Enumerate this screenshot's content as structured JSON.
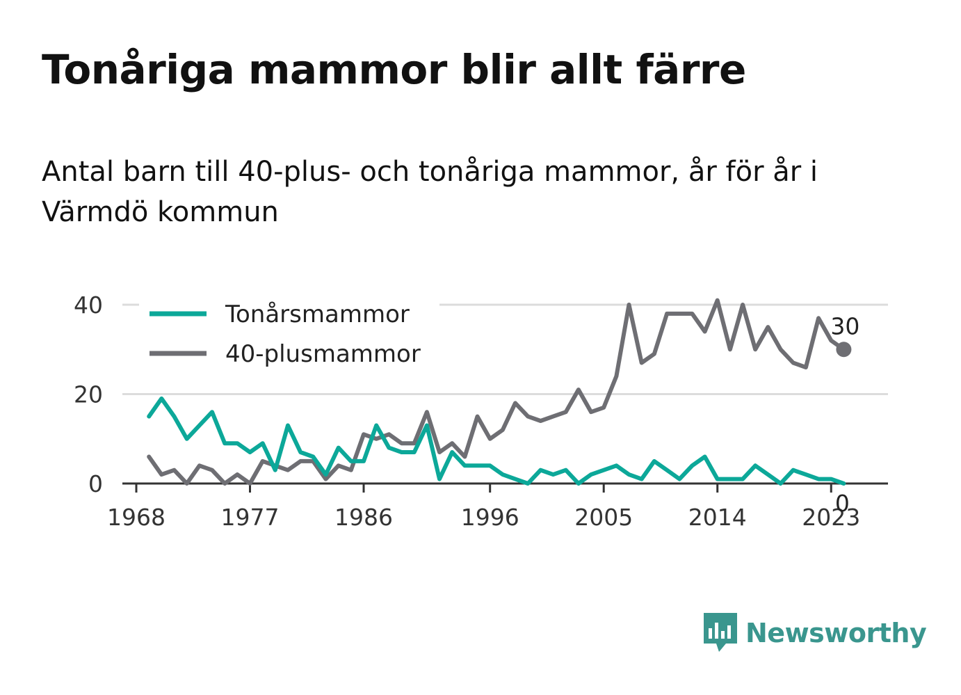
{
  "header": {
    "title": "Tonåriga mammor blir allt färre",
    "subtitle": "Antal barn till 40-plus- och tonåriga mammor, år för år i Värmdö kommun"
  },
  "brand": {
    "name": "Newsworthy",
    "icon": "newsworthy-logo-icon",
    "color": "#3a968e"
  },
  "chart_data": {
    "type": "line",
    "x": [
      1969,
      1970,
      1971,
      1972,
      1973,
      1974,
      1975,
      1976,
      1977,
      1978,
      1979,
      1980,
      1981,
      1982,
      1983,
      1984,
      1985,
      1986,
      1987,
      1988,
      1989,
      1990,
      1991,
      1992,
      1993,
      1994,
      1995,
      1996,
      1997,
      1998,
      1999,
      2000,
      2001,
      2002,
      2003,
      2004,
      2005,
      2006,
      2007,
      2008,
      2009,
      2010,
      2011,
      2012,
      2013,
      2014,
      2015,
      2016,
      2017,
      2018,
      2019,
      2020,
      2021,
      2022,
      2023,
      2024
    ],
    "series": [
      {
        "name": "Tonårsmammor",
        "color": "#0ca899",
        "values": [
          15,
          19,
          15,
          10,
          13,
          16,
          9,
          9,
          7,
          9,
          3,
          13,
          7,
          6,
          2,
          8,
          5,
          5,
          13,
          8,
          7,
          7,
          13,
          1,
          7,
          4,
          4,
          4,
          2,
          1,
          0,
          3,
          2,
          3,
          0,
          2,
          3,
          4,
          2,
          1,
          5,
          3,
          1,
          4,
          6,
          1,
          1,
          1,
          4,
          2,
          0,
          3,
          2,
          1,
          1,
          0
        ],
        "end_label": "0"
      },
      {
        "name": "40-plusmammor",
        "color": "#6e6e73",
        "values": [
          6,
          2,
          3,
          0,
          4,
          3,
          0,
          2,
          0,
          5,
          4,
          3,
          5,
          5,
          1,
          4,
          3,
          11,
          10,
          11,
          9,
          9,
          16,
          7,
          9,
          6,
          15,
          10,
          12,
          18,
          15,
          14,
          15,
          16,
          21,
          16,
          17,
          24,
          40,
          27,
          29,
          38,
          38,
          38,
          34,
          41,
          30,
          40,
          30,
          35,
          30,
          27,
          26,
          37,
          32,
          30
        ],
        "end_label": "30"
      }
    ],
    "x_ticks": [
      "1968",
      "1977",
      "1986",
      "1996",
      "2005",
      "2014",
      "2023"
    ],
    "y_ticks": [
      "0",
      "20",
      "40"
    ],
    "ylim": [
      0,
      40
    ],
    "grid": "horizontal",
    "legend": "top-left"
  }
}
